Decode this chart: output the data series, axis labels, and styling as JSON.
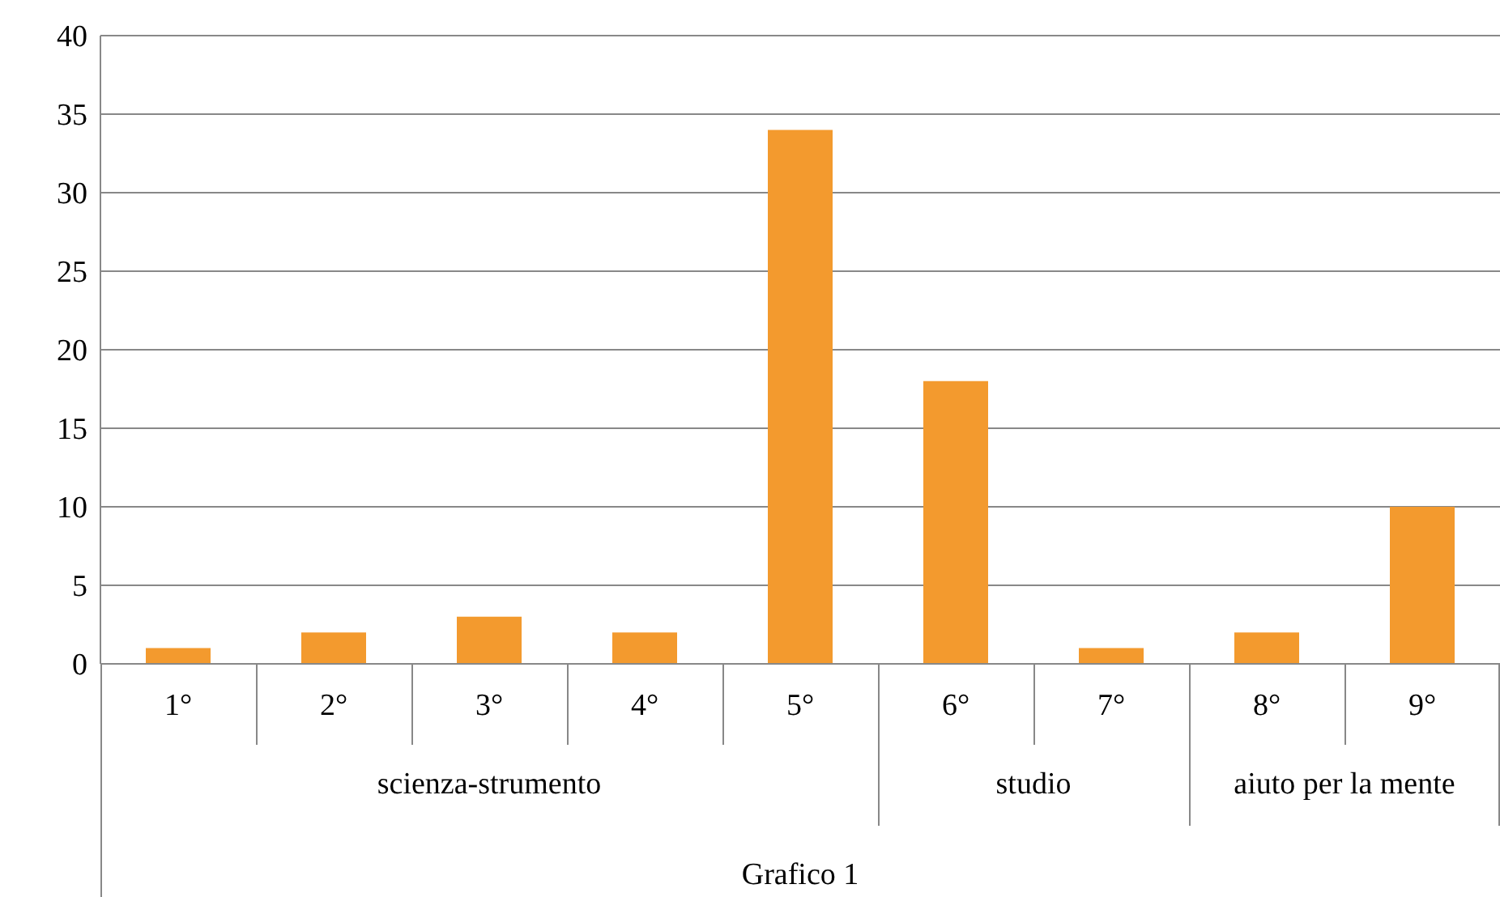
{
  "chart_data": {
    "type": "bar",
    "xlabel": "Grafico 1",
    "categories": [
      "1°",
      "2°",
      "3°",
      "4°",
      "5°",
      "6°",
      "7°",
      "8°",
      "9°"
    ],
    "values": [
      1,
      2,
      3,
      2,
      34,
      18,
      1,
      2,
      10
    ],
    "color": "#f39a2e",
    "ylim": [
      0,
      40
    ],
    "yticks": [
      0,
      5,
      10,
      15,
      20,
      25,
      30,
      35,
      40
    ],
    "grid": "y",
    "annotations": [
      "scienza-strumento",
      "studio",
      "aiuto per la mente"
    ]
  }
}
